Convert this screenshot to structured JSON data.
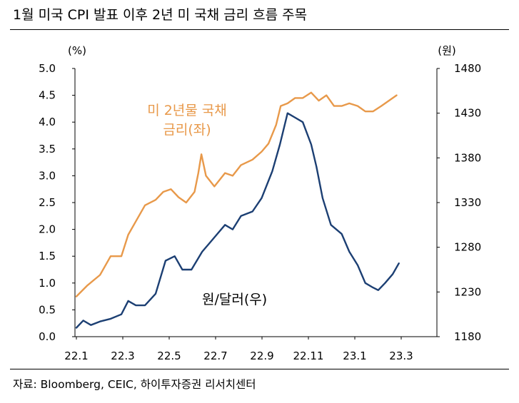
{
  "title": "1월 미국 CPI 발표 이후 2년 미 국채 금리 흐름 주목",
  "source": "자료: Bloomberg, CEIC, 하이투자증권 리서치센터",
  "colors": {
    "rate": "#E8994A",
    "krw": "#1C3F73",
    "axis": "#000000"
  },
  "chart_data": {
    "type": "line",
    "x_ticks": [
      "22.1",
      "22.3",
      "22.5",
      "22.7",
      "22.9",
      "22.11",
      "23.1",
      "23.3"
    ],
    "left_axis": {
      "unit": "(%)",
      "ylim": [
        0.0,
        5.0
      ],
      "ticks": [
        "0.0",
        "0.5",
        "1.0",
        "1.5",
        "2.0",
        "2.5",
        "3.0",
        "3.5",
        "4.0",
        "4.5",
        "5.0"
      ]
    },
    "right_axis": {
      "unit": "(원)",
      "ylim": [
        1180,
        1480
      ],
      "ticks": [
        "1180",
        "1230",
        "1280",
        "1330",
        "1380",
        "1430",
        "1480"
      ]
    },
    "series": [
      {
        "name": "미 2년물 국채 금리(좌)",
        "axis": "left",
        "label_lines": [
          "미 2년물 국채",
          "금리(좌)"
        ],
        "x": [
          "2022-01-01",
          "2022-01-15",
          "2022-02-01",
          "2022-02-15",
          "2022-03-01",
          "2022-03-10",
          "2022-03-20",
          "2022-04-01",
          "2022-04-15",
          "2022-04-25",
          "2022-05-05",
          "2022-05-15",
          "2022-05-25",
          "2022-06-05",
          "2022-06-10",
          "2022-06-14",
          "2022-06-20",
          "2022-07-01",
          "2022-07-15",
          "2022-07-25",
          "2022-08-05",
          "2022-08-20",
          "2022-09-01",
          "2022-09-10",
          "2022-09-20",
          "2022-09-26",
          "2022-10-05",
          "2022-10-15",
          "2022-10-25",
          "2022-11-05",
          "2022-11-15",
          "2022-11-25",
          "2022-12-05",
          "2022-12-15",
          "2022-12-25",
          "2023-01-05",
          "2023-01-15",
          "2023-01-25",
          "2023-02-05",
          "2023-02-15",
          "2023-02-25"
        ],
        "y": [
          0.75,
          0.95,
          1.15,
          1.5,
          1.5,
          1.9,
          2.15,
          2.45,
          2.55,
          2.7,
          2.75,
          2.6,
          2.5,
          2.7,
          3.05,
          3.4,
          3.0,
          2.8,
          3.05,
          3.0,
          3.2,
          3.3,
          3.45,
          3.6,
          3.95,
          4.3,
          4.35,
          4.45,
          4.45,
          4.55,
          4.4,
          4.5,
          4.3,
          4.3,
          4.35,
          4.3,
          4.2,
          4.2,
          4.3,
          4.4,
          4.5
        ]
      },
      {
        "name": "원/달러(우)",
        "axis": "right",
        "x": [
          "2022-01-01",
          "2022-01-10",
          "2022-01-20",
          "2022-02-01",
          "2022-02-15",
          "2022-03-01",
          "2022-03-10",
          "2022-03-20",
          "2022-04-01",
          "2022-04-15",
          "2022-04-28",
          "2022-05-10",
          "2022-05-20",
          "2022-06-01",
          "2022-06-15",
          "2022-06-25",
          "2022-07-05",
          "2022-07-15",
          "2022-07-25",
          "2022-08-05",
          "2022-08-20",
          "2022-09-01",
          "2022-09-15",
          "2022-09-25",
          "2022-10-05",
          "2022-10-15",
          "2022-10-25",
          "2022-11-05",
          "2022-11-12",
          "2022-11-20",
          "2022-12-01",
          "2022-12-15",
          "2022-12-25",
          "2023-01-05",
          "2023-01-15",
          "2023-01-25",
          "2023-02-01",
          "2023-02-10",
          "2023-02-20",
          "2023-02-28"
        ],
        "y": [
          1190,
          1198,
          1193,
          1197,
          1200,
          1205,
          1220,
          1215,
          1215,
          1228,
          1265,
          1270,
          1255,
          1255,
          1275,
          1285,
          1295,
          1305,
          1300,
          1315,
          1320,
          1335,
          1365,
          1395,
          1430,
          1425,
          1420,
          1395,
          1370,
          1335,
          1305,
          1295,
          1275,
          1260,
          1240,
          1235,
          1232,
          1240,
          1250,
          1262
        ]
      }
    ],
    "grid": false
  }
}
